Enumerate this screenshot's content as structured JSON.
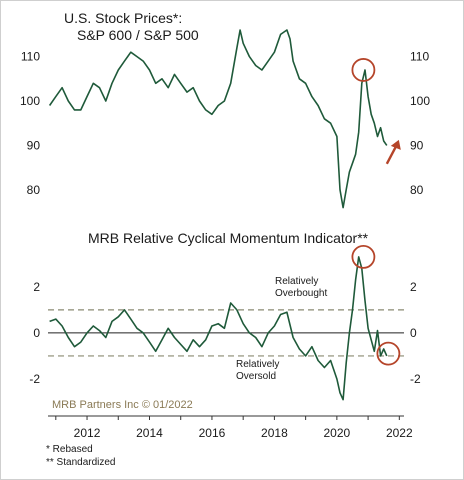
{
  "chart_data": [
    {
      "type": "line",
      "title": "U.S. Stock Prices*:",
      "subtitle": "S&P 600 / S&P 500",
      "ylim": [
        75,
        116
      ],
      "yticks": [
        80,
        90,
        100,
        110
      ],
      "xlim": [
        2010.75,
        2022.15
      ],
      "line_color": "#1f5a3a",
      "highlight_color": "#b5452a",
      "annotations": [
        {
          "kind": "circle",
          "x": 2020.85,
          "y": 107,
          "label": ""
        },
        {
          "kind": "arrow-up",
          "x": 2021.6,
          "y": 89,
          "label": ""
        }
      ],
      "series": [
        {
          "name": "",
          "x": [
            2010.8,
            2011.0,
            2011.2,
            2011.4,
            2011.6,
            2011.8,
            2012.0,
            2012.2,
            2012.4,
            2012.6,
            2012.8,
            2013.0,
            2013.2,
            2013.4,
            2013.6,
            2013.8,
            2014.0,
            2014.2,
            2014.4,
            2014.6,
            2014.8,
            2015.0,
            2015.2,
            2015.4,
            2015.6,
            2015.8,
            2016.0,
            2016.2,
            2016.4,
            2016.6,
            2016.8,
            2016.9,
            2017.0,
            2017.2,
            2017.4,
            2017.6,
            2017.8,
            2018.0,
            2018.2,
            2018.4,
            2018.5,
            2018.6,
            2018.8,
            2019.0,
            2019.2,
            2019.4,
            2019.6,
            2019.8,
            2020.0,
            2020.1,
            2020.2,
            2020.3,
            2020.4,
            2020.5,
            2020.6,
            2020.7,
            2020.8,
            2020.9,
            2021.0,
            2021.1,
            2021.2,
            2021.3,
            2021.4,
            2021.5,
            2021.6
          ],
          "y": [
            99,
            101,
            103,
            100,
            98,
            98,
            101,
            104,
            103,
            100,
            104,
            107,
            109,
            111,
            110,
            109,
            107,
            104,
            105,
            103,
            106,
            104,
            102,
            103,
            100,
            98,
            97,
            99,
            100,
            104,
            112,
            116,
            113,
            110,
            108,
            107,
            109,
            111,
            115,
            116,
            114,
            109,
            105,
            104,
            101,
            99,
            96,
            95,
            92,
            80,
            76,
            80,
            84,
            86,
            88,
            93,
            104,
            107,
            101,
            97,
            95,
            92,
            94,
            91,
            90
          ]
        }
      ]
    },
    {
      "type": "line",
      "title": "MRB Relative Cyclical Momentum Indicator**",
      "ylim": [
        -3,
        3.6
      ],
      "yticks": [
        -2,
        0,
        2
      ],
      "xlim": [
        2010.75,
        2022.15
      ],
      "line_color": "#1f5a3a",
      "threshold_lines": [
        1,
        -1
      ],
      "zero_line": 0,
      "labels": [
        "Relatively Overbought",
        "Relatively Oversold"
      ],
      "annotations": [
        {
          "kind": "circle",
          "x": 2020.85,
          "y": 3.3,
          "label": ""
        },
        {
          "kind": "circle",
          "x": 2021.65,
          "y": -0.9,
          "label": ""
        }
      ],
      "series": [
        {
          "name": "",
          "x": [
            2010.8,
            2011.0,
            2011.2,
            2011.4,
            2011.6,
            2011.8,
            2012.0,
            2012.2,
            2012.4,
            2012.6,
            2012.8,
            2013.0,
            2013.2,
            2013.4,
            2013.6,
            2013.8,
            2014.0,
            2014.2,
            2014.4,
            2014.6,
            2014.8,
            2015.0,
            2015.2,
            2015.4,
            2015.6,
            2015.8,
            2016.0,
            2016.2,
            2016.4,
            2016.6,
            2016.8,
            2017.0,
            2017.2,
            2017.4,
            2017.6,
            2017.8,
            2018.0,
            2018.2,
            2018.4,
            2018.6,
            2018.8,
            2019.0,
            2019.2,
            2019.4,
            2019.6,
            2019.8,
            2020.0,
            2020.1,
            2020.2,
            2020.3,
            2020.4,
            2020.5,
            2020.6,
            2020.7,
            2020.8,
            2020.9,
            2021.0,
            2021.1,
            2021.2,
            2021.3,
            2021.4,
            2021.5,
            2021.6
          ],
          "y": [
            0.5,
            0.6,
            0.3,
            -0.2,
            -0.6,
            -0.4,
            0.0,
            0.3,
            0.1,
            -0.2,
            0.5,
            0.7,
            1.0,
            0.6,
            0.2,
            0.0,
            -0.4,
            -0.8,
            -0.3,
            0.2,
            -0.2,
            -0.5,
            -0.8,
            -0.3,
            -0.6,
            -0.3,
            0.3,
            0.4,
            0.2,
            1.3,
            1.0,
            0.4,
            0.0,
            -0.2,
            -0.6,
            0.0,
            0.3,
            0.8,
            0.9,
            -0.2,
            -0.7,
            -1.0,
            -0.6,
            -1.2,
            -1.5,
            -1.2,
            -2.0,
            -2.6,
            -2.9,
            -1.3,
            0.0,
            1.0,
            2.3,
            3.3,
            2.8,
            1.4,
            0.2,
            -0.3,
            -0.8,
            0.1,
            -1.0,
            -0.7,
            -1.0
          ]
        }
      ]
    }
  ],
  "xaxis": {
    "ticks": [
      2012,
      2014,
      2016,
      2018,
      2020,
      2022
    ],
    "tick_labels": [
      "2012",
      "2014",
      "2016",
      "2018",
      "2020",
      "2022"
    ]
  },
  "source": "MRB Partners Inc © 01/2022",
  "footnotes": [
    "*  Rebased",
    "** Standardized"
  ],
  "colors": {
    "line": "#1f5a3a",
    "highlight": "#b5452a",
    "threshold": "#8a8a72",
    "source": "#8a7a55",
    "border": "#cfcfcf"
  }
}
